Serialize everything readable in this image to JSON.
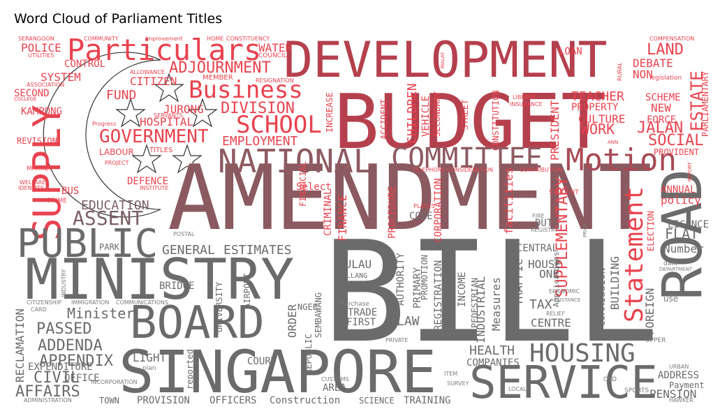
{
  "chart_data": {
    "type": "wordcloud",
    "title": "Word Cloud of Parliament Titles",
    "mask": "Singapore flag (red upper half with crescent and five stars, white lower half)",
    "colors": {
      "red": "#e8434f",
      "dark_red": "#b5404d",
      "mauve": "#8e5a62",
      "grey": "#6b6b6b",
      "light_grey": "#9a9a9a",
      "pink": "#f0868e"
    },
    "words": [
      {
        "text": "BILL",
        "weight": 100,
        "color": "#6b6b6b"
      },
      {
        "text": "AMENDMENT",
        "weight": 96,
        "color": "#8a5a60"
      },
      {
        "text": "BUDGET",
        "weight": 78,
        "color": "#b5404d"
      },
      {
        "text": "SINGAPORE",
        "weight": 62,
        "color": "#6b6b6b"
      },
      {
        "text": "DEVELOPMENT",
        "weight": 58,
        "color": "#b5404d"
      },
      {
        "text": "MINISTRY",
        "weight": 56,
        "color": "#6b6b6b"
      },
      {
        "text": "ROAD",
        "weight": 54,
        "color": "#6b6b6b"
      },
      {
        "text": "SERVICE",
        "weight": 46,
        "color": "#6b6b6b"
      },
      {
        "text": "BOARD",
        "weight": 44,
        "color": "#6b6b6b"
      },
      {
        "text": "SUPPLY",
        "weight": 42,
        "color": "#e8434f"
      },
      {
        "text": "PUBLIC",
        "weight": 42,
        "color": "#6b6b6b"
      },
      {
        "text": "NATIONAL",
        "weight": 38,
        "color": "#8e5a62"
      },
      {
        "text": "COMMITTEE",
        "weight": 34,
        "color": "#8e5a62"
      },
      {
        "text": "Motion",
        "weight": 33,
        "color": "#a84a55"
      },
      {
        "text": "Particulars",
        "weight": 32,
        "color": "#e8434f"
      },
      {
        "text": "HOUSING",
        "weight": 30,
        "color": "#6b6b6b"
      },
      {
        "text": "Business",
        "weight": 28,
        "color": "#e8434f"
      },
      {
        "text": "SCHOOL",
        "weight": 26,
        "color": "#e8434f"
      },
      {
        "text": "Statement",
        "weight": 26,
        "color": "#e8434f"
      },
      {
        "text": "GOVERNMENT",
        "weight": 22,
        "color": "#e8434f"
      },
      {
        "text": "ASSENT",
        "weight": 22,
        "color": "#7a6065"
      },
      {
        "text": "LAND",
        "weight": 22,
        "color": "#e8434f"
      },
      {
        "text": "ESTATE",
        "weight": 22,
        "color": "#e8434f"
      },
      {
        "text": "SUPPLEMENTARY",
        "weight": 20,
        "color": "#e8434f"
      },
      {
        "text": "DIVISION",
        "weight": 20,
        "color": "#e8434f"
      },
      {
        "text": "ADJOURNMENT",
        "weight": 20,
        "color": "#e8434f"
      },
      {
        "text": "PASSED",
        "weight": 20,
        "color": "#6b6b6b"
      },
      {
        "text": "ADDENDA",
        "weight": 20,
        "color": "#6b6b6b"
      },
      {
        "text": "APPENDIX",
        "weight": 20,
        "color": "#6b6b6b"
      },
      {
        "text": "CIVIL",
        "weight": 18,
        "color": "#6b6b6b"
      },
      {
        "text": "AFFAIRS",
        "weight": 18,
        "color": "#6b6b6b"
      },
      {
        "text": "EDUCATION",
        "weight": 16,
        "color": "#7a6065"
      },
      {
        "text": "SOCIAL",
        "weight": 18,
        "color": "#e8434f"
      },
      {
        "text": "JALAN",
        "weight": 18,
        "color": "#e8434f"
      },
      {
        "text": "WORK",
        "weight": 18,
        "color": "#e8434f"
      },
      {
        "text": "TEACHER",
        "weight": 16,
        "color": "#e8434f"
      },
      {
        "text": "Minister",
        "weight": 16,
        "color": "#6b6b6b"
      },
      {
        "text": "GENERAL",
        "weight": 16,
        "color": "#6b6b6b"
      },
      {
        "text": "ESTIMATES",
        "weight": 16,
        "color": "#6b6b6b"
      },
      {
        "text": "EMPLOYMENT",
        "weight": 16,
        "color": "#e8434f"
      },
      {
        "text": "FUND",
        "weight": 16,
        "color": "#e8434f"
      },
      {
        "text": "CITIZEN",
        "weight": 14,
        "color": "#e8434f"
      },
      {
        "text": "JURONG",
        "weight": 14,
        "color": "#e8434f"
      },
      {
        "text": "HOSPITAL",
        "weight": 14,
        "color": "#e8434f"
      },
      {
        "text": "DEFENCE",
        "weight": 12,
        "color": "#e8434f"
      },
      {
        "text": "POLICE",
        "weight": 14,
        "color": "#e8434f"
      },
      {
        "text": "WATER",
        "weight": 14,
        "color": "#e8434f"
      },
      {
        "text": "SYSTEM",
        "weight": 14,
        "color": "#e8434f"
      },
      {
        "text": "CONTROL",
        "weight": 12,
        "color": "#e8434f"
      },
      {
        "text": "SECOND",
        "weight": 12,
        "color": "#e8434f"
      },
      {
        "text": "KAMPONG",
        "weight": 12,
        "color": "#e8434f"
      },
      {
        "text": "REVISION",
        "weight": 11,
        "color": "#e8434f"
      },
      {
        "text": "BUS",
        "weight": 12,
        "color": "#e8434f"
      },
      {
        "text": "FLAT",
        "weight": 16,
        "color": "#6b6b6b"
      },
      {
        "text": "LICENCE",
        "weight": 13,
        "color": "#6b6b6b"
      },
      {
        "text": "Number",
        "weight": 13,
        "color": "#6b6b6b"
      },
      {
        "text": "ANNUAL",
        "weight": 13,
        "color": "#e8434f"
      },
      {
        "text": "policy",
        "weight": 13,
        "color": "#e8434f"
      },
      {
        "text": "ELECTION",
        "weight": 12,
        "color": "#e8434f"
      },
      {
        "text": "PRESIDENT",
        "weight": 14,
        "color": "#e8434f"
      },
      {
        "text": "CULTURE",
        "weight": 14,
        "color": "#e8434f"
      },
      {
        "text": "PROPERTY",
        "weight": 12,
        "color": "#e8434f"
      },
      {
        "text": "SCHEME",
        "weight": 12,
        "color": "#e8434f"
      },
      {
        "text": "NEW",
        "weight": 14,
        "color": "#e8434f"
      },
      {
        "text": "FORCE",
        "weight": 12,
        "color": "#e8434f"
      },
      {
        "text": "DEBATE",
        "weight": 14,
        "color": "#e8434f"
      },
      {
        "text": "NON",
        "weight": 14,
        "color": "#e8434f"
      },
      {
        "text": "LOAN",
        "weight": 12,
        "color": "#e8434f"
      },
      {
        "text": "PARLIAMENTARY",
        "weight": 11,
        "color": "#e8434f"
      },
      {
        "text": "PROVIDENT",
        "weight": 10,
        "color": "#e8434f"
      },
      {
        "text": "CHILDREN",
        "weight": 14,
        "color": "#e8434f"
      },
      {
        "text": "VEHICLE",
        "weight": 12,
        "color": "#e8434f"
      },
      {
        "text": "ACCIDENT",
        "weight": 11,
        "color": "#e8434f"
      },
      {
        "text": "SECONDARY",
        "weight": 10,
        "color": "#e8434f"
      },
      {
        "text": "INCREASE",
        "weight": 11,
        "color": "#e8434f"
      },
      {
        "text": "STREET",
        "weight": 10,
        "color": "#e8434f"
      },
      {
        "text": "CONSTITUTION",
        "weight": 10,
        "color": "#e8434f"
      },
      {
        "text": "FINANCE",
        "weight": 12,
        "color": "#e8434f"
      },
      {
        "text": "FINANCIAL",
        "weight": 10,
        "color": "#e8434f"
      },
      {
        "text": "CRIMINAL",
        "weight": 11,
        "color": "#e8434f"
      },
      {
        "text": "Select",
        "weight": 11,
        "color": "#e8434f"
      },
      {
        "text": "PROCEDURE",
        "weight": 11,
        "color": "#e8434f"
      },
      {
        "text": "CORPORATION",
        "weight": 11,
        "color": "#e8434f"
      },
      {
        "text": "facilities",
        "weight": 12,
        "color": "#e8434f"
      },
      {
        "text": "CODE",
        "weight": 12,
        "color": "#6b6b6b"
      },
      {
        "text": "DUTY",
        "weight": 11,
        "color": "#6b6b6b"
      },
      {
        "text": "PARK",
        "weight": 11,
        "color": "#6b6b6b"
      },
      {
        "text": "BRIDGE",
        "weight": 11,
        "color": "#6b6b6b"
      },
      {
        "text": "UNIVERSITY",
        "weight": 10,
        "color": "#6b6b6b"
      },
      {
        "text": "AIRPORT",
        "weight": 10,
        "color": "#6b6b6b"
      },
      {
        "text": "ORDER",
        "weight": 12,
        "color": "#6b6b6b"
      },
      {
        "text": "PULAU",
        "weight": 12,
        "color": "#6b6b6b"
      },
      {
        "text": "KALLANG",
        "weight": 8,
        "color": "#6b6b6b"
      },
      {
        "text": "SEMBAWANG",
        "weight": 9,
        "color": "#6b6b6b"
      },
      {
        "text": "NGEE",
        "weight": 9,
        "color": "#6b6b6b"
      },
      {
        "text": "TRADE",
        "weight": 11,
        "color": "#6b6b6b"
      },
      {
        "text": "FIRST",
        "weight": 11,
        "color": "#6b6b6b"
      },
      {
        "text": "AUTHORITY",
        "weight": 11,
        "color": "#6b6b6b"
      },
      {
        "text": "PRIMARY",
        "weight": 11,
        "color": "#6b6b6b"
      },
      {
        "text": "PROMOTION",
        "weight": 9,
        "color": "#6b6b6b"
      },
      {
        "text": "REGISTRATION",
        "weight": 11,
        "color": "#6b6b6b"
      },
      {
        "text": "INCOME",
        "weight": 11,
        "color": "#6b6b6b"
      },
      {
        "text": "PEDESTRIAN",
        "weight": 10,
        "color": "#6b6b6b"
      },
      {
        "text": "INDUSTRIAL",
        "weight": 12,
        "color": "#6b6b6b"
      },
      {
        "text": "Measures",
        "weight": 12,
        "color": "#6b6b6b"
      },
      {
        "text": "TRAFFIC",
        "weight": 13,
        "color": "#6b6b6b"
      },
      {
        "text": "CENTRAL",
        "weight": 11,
        "color": "#6b6b6b"
      },
      {
        "text": "HOUSE",
        "weight": 12,
        "color": "#6b6b6b"
      },
      {
        "text": "ONE",
        "weight": 12,
        "color": "#6b6b6b"
      },
      {
        "text": "TAX",
        "weight": 13,
        "color": "#6b6b6b"
      },
      {
        "text": "CENTRE",
        "weight": 13,
        "color": "#6b6b6b"
      },
      {
        "text": "COMMISSION",
        "weight": 11,
        "color": "#6b6b6b"
      },
      {
        "text": "BUILDING",
        "weight": 12,
        "color": "#6b6b6b"
      },
      {
        "text": "FOREIGN",
        "weight": 12,
        "color": "#6b6b6b"
      },
      {
        "text": "LAW",
        "weight": 14,
        "color": "#6b6b6b"
      },
      {
        "text": "REPUBLIC",
        "weight": 10,
        "color": "#6b6b6b"
      },
      {
        "text": "COURT",
        "weight": 11,
        "color": "#6b6b6b"
      },
      {
        "text": "LIGHT",
        "weight": 12,
        "color": "#6b6b6b"
      },
      {
        "text": "reported",
        "weight": 10,
        "color": "#6b6b6b"
      },
      {
        "text": "HEALTH",
        "weight": 14,
        "color": "#6b6b6b"
      },
      {
        "text": "COMPANIES",
        "weight": 11,
        "color": "#6b6b6b"
      },
      {
        "text": "PROVISION",
        "weight": 12,
        "color": "#6b6b6b"
      },
      {
        "text": "OFFICERS",
        "weight": 12,
        "color": "#6b6b6b"
      },
      {
        "text": "Construction",
        "weight": 12,
        "color": "#6b6b6b"
      },
      {
        "text": "SCIENCE",
        "weight": 11,
        "color": "#6b6b6b"
      },
      {
        "text": "TRAINING",
        "weight": 12,
        "color": "#6b6b6b"
      },
      {
        "text": "TOWN",
        "weight": 11,
        "color": "#6b6b6b"
      },
      {
        "text": "OFFICE",
        "weight": 11,
        "color": "#6b6b6b"
      },
      {
        "text": "EXPENDITURE",
        "weight": 11,
        "color": "#6b6b6b"
      },
      {
        "text": "RECLAMATION",
        "weight": 12,
        "color": "#6b6b6b"
      },
      {
        "text": "AREA",
        "weight": 11,
        "color": "#6b6b6b"
      },
      {
        "text": "PENSION",
        "weight": 12,
        "color": "#6b6b6b"
      },
      {
        "text": "ADDRESS",
        "weight": 11,
        "color": "#6b6b6b"
      },
      {
        "text": "Payment",
        "weight": 10,
        "color": "#6b6b6b"
      },
      {
        "text": "Applications",
        "weight": 10,
        "color": "#6b6b6b"
      }
    ]
  },
  "small_words": [
    "SERANGOON",
    "COMMUNITY",
    "Improvement",
    "HOME",
    "CONSTITUENCY",
    "COUNCIL",
    "UTILITIES",
    "ALLOWANCE",
    "MEMBER",
    "RESIGNATION",
    "ASSOCIATION",
    "COLLEGE",
    "SERVANTS",
    "Progress",
    "LABOUR",
    "TITLES",
    "PROJECT",
    "MARKET",
    "WELFARE",
    "IDENTITY",
    "PRIME",
    "INSTITUTE",
    "TELEPHONE",
    "CONSIDERATION",
    "CONTRIBUTION",
    "LIBRARY",
    "INSURANCE",
    "RURAL",
    "legislation",
    "COMPENSATION",
    "MALAY",
    "ANN",
    "REPORT",
    "STUDENT",
    "PLACES",
    "FIRE",
    "REGISTRY",
    "PRICE",
    "POSTAL",
    "INDUSTRY",
    "CITIZENSHIP",
    "IMMIGRATION",
    "COMMUNICATIONS",
    "CARD",
    "ECONOMIC",
    "ASSISTANCE",
    "RELIEF",
    "date",
    "DEPARTMENT",
    "use",
    "UPPER",
    "URBAN",
    "Purchase",
    "PRIVATE",
    "CUSTOMS",
    "ITEM",
    "SURVEY",
    "LOCAL",
    "OLD",
    "SPORTS",
    "HAWKER",
    "plan",
    "INCORPORATION",
    "ADMINISTRATION"
  ]
}
